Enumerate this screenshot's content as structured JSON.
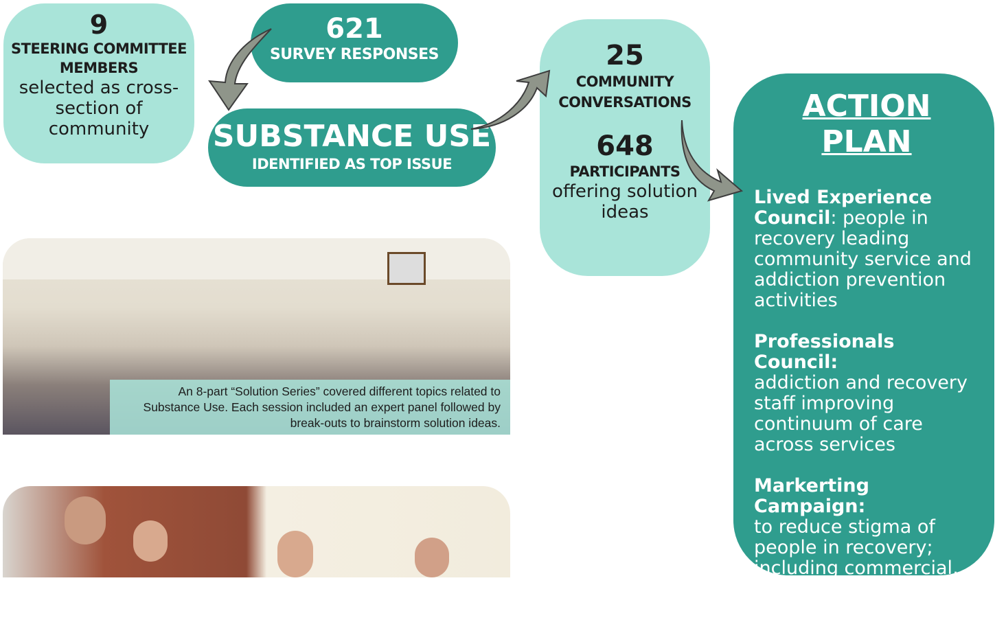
{
  "steering": {
    "number": 9,
    "label": "STEERING COMMITTEE MEMBERS",
    "text": "selected as cross-section of community"
  },
  "survey": {
    "number": 621,
    "label": "SURVEY RESPONSES"
  },
  "substance": {
    "title": "SUBSTANCE USE",
    "subtitle": "IDENTIFIED AS TOP ISSUE"
  },
  "conversations": {
    "number": 25,
    "label": "COMMUNITY CONVERSATIONS",
    "participants_number": 648,
    "participants_label": "PARTICIPANTS",
    "participants_text": "offering solution ideas"
  },
  "photo_caption": "An 8-part “Solution Series” covered different topics related to Substance Use. Each session included an expert panel followed by break-outs to brainstorm solution ideas.",
  "action_plan": {
    "title": "ACTION PLAN",
    "items": [
      {
        "heading": "Lived Experience Council",
        "text": ": people in recovery leading community service and addiction prevention activities"
      },
      {
        "heading": "Professionals Council:",
        "text": "addiction and recovery staff improving continuum of care across services"
      },
      {
        "heading": "Markerting Campaign:",
        "text": "to reduce stigma of people in recovery; including commercial, film with interviews, and print materials"
      }
    ]
  }
}
